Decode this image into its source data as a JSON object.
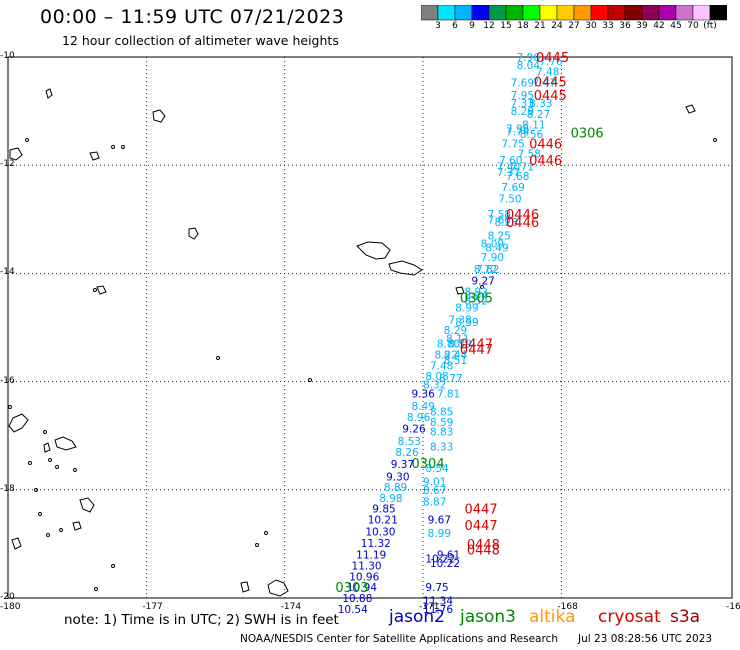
{
  "title": "00:00 – 11:59 UTC 07/21/2023",
  "subtitle": "12 hour collection of altimeter wave heights",
  "colorbar": {
    "colors": [
      "#7f7f7f",
      "#00e5ff",
      "#00b4ff",
      "#0000ff",
      "#009a4a",
      "#00b400",
      "#00ff00",
      "#ffff00",
      "#ffcc00",
      "#ff9900",
      "#ff0000",
      "#c00000",
      "#800000",
      "#8b0055",
      "#ac00ac",
      "#d070d0",
      "#ffc0ff",
      "#000000"
    ],
    "labels": [
      "3",
      "6",
      "9",
      "12",
      "15",
      "18",
      "21",
      "24",
      "27",
      "30",
      "33",
      "36",
      "39",
      "42",
      "45",
      "70",
      "(ft)"
    ]
  },
  "axes": {
    "x_ticks": [
      "-180",
      "-177",
      "-174",
      "-171",
      "-168",
      "-16"
    ],
    "y_ticks": [
      "-10",
      "-12",
      "-14",
      "-16",
      "-18",
      "-20"
    ]
  },
  "note": "note: 1) Time is in UTC; 2) SWH is in feet",
  "legend": [
    {
      "label": "jason2",
      "color": "#0000cc"
    },
    {
      "label": "jason3",
      "color": "#008800"
    },
    {
      "label": "altika",
      "color": "#ff9900"
    },
    {
      "label": "cryosat",
      "color": "#dd0000"
    },
    {
      "label": "s3a",
      "color": "#990000"
    }
  ],
  "credit": "NOAA/NESDIS Center for Satellite Applications and Research",
  "timestamp": "Jul 23 08:28:56 UTC 2023",
  "time_labels": [
    {
      "text": "0445",
      "lon": -168.55,
      "lat": -10.0,
      "color": "#dd0000"
    },
    {
      "text": "0445",
      "lon": -168.6,
      "lat": -10.45,
      "color": "#dd0000"
    },
    {
      "text": "0445",
      "lon": -168.6,
      "lat": -10.7,
      "color": "#dd0000"
    },
    {
      "text": "0306",
      "lon": -167.8,
      "lat": -11.4,
      "color": "#008800"
    },
    {
      "text": "0446",
      "lon": -168.7,
      "lat": -11.6,
      "color": "#dd0000"
    },
    {
      "text": "0446",
      "lon": -168.7,
      "lat": -11.9,
      "color": "#dd0000"
    },
    {
      "text": "0446",
      "lon": -169.2,
      "lat": -12.9,
      "color": "#dd0000"
    },
    {
      "text": "0446",
      "lon": -169.2,
      "lat": -13.05,
      "color": "#dd0000"
    },
    {
      "text": "0305",
      "lon": -170.2,
      "lat": -14.45,
      "color": "#008800"
    },
    {
      "text": "0447",
      "lon": -170.2,
      "lat": -15.3,
      "color": "#dd0000"
    },
    {
      "text": "0447",
      "lon": -170.2,
      "lat": -15.4,
      "color": "#dd0000"
    },
    {
      "text": "0304",
      "lon": -171.25,
      "lat": -17.5,
      "color": "#008800"
    },
    {
      "text": "0447",
      "lon": -170.1,
      "lat": -18.35,
      "color": "#dd0000"
    },
    {
      "text": "0447",
      "lon": -170.1,
      "lat": -18.65,
      "color": "#dd0000"
    },
    {
      "text": "0448",
      "lon": -170.05,
      "lat": -19.0,
      "color": "#dd0000"
    },
    {
      "text": "0448",
      "lon": -170.05,
      "lat": -19.1,
      "color": "#dd0000"
    },
    {
      "text": "0303",
      "lon": -172.9,
      "lat": -19.8,
      "color": "#008800"
    }
  ],
  "swh_values": [
    {
      "v": "7.96",
      "lon": -168.97,
      "lat": -10.0,
      "c": "#00b4ff"
    },
    {
      "v": "8.04",
      "lon": -168.97,
      "lat": -10.15,
      "c": "#00b4ff"
    },
    {
      "v": "7.76",
      "lon": -168.48,
      "lat": -10.07,
      "c": "#00b4ff"
    },
    {
      "v": "7.48",
      "lon": -168.55,
      "lat": -10.27,
      "c": "#00b4ff"
    },
    {
      "v": "7.47",
      "lon": -168.62,
      "lat": -10.47,
      "c": "#00b4ff"
    },
    {
      "v": "7.69",
      "lon": -169.1,
      "lat": -10.47,
      "c": "#00b4ff"
    },
    {
      "v": "7.95",
      "lon": -169.1,
      "lat": -10.7,
      "c": "#00b4ff"
    },
    {
      "v": "7.33",
      "lon": -169.1,
      "lat": -10.85,
      "c": "#00b4ff"
    },
    {
      "v": "8.33",
      "lon": -168.7,
      "lat": -10.85,
      "c": "#00b4ff"
    },
    {
      "v": "8.29",
      "lon": -169.1,
      "lat": -11.0,
      "c": "#00b4ff"
    },
    {
      "v": "8.27",
      "lon": -168.75,
      "lat": -11.05,
      "c": "#00b4ff"
    },
    {
      "v": "8.11",
      "lon": -168.85,
      "lat": -11.25,
      "c": "#00b4ff"
    },
    {
      "v": "7.96",
      "lon": -169.2,
      "lat": -11.32,
      "c": "#00b4ff"
    },
    {
      "v": "7.74",
      "lon": -169.2,
      "lat": -11.38,
      "c": "#00b4ff"
    },
    {
      "v": "8.56",
      "lon": -168.9,
      "lat": -11.42,
      "c": "#00b4ff"
    },
    {
      "v": "7.75",
      "lon": -169.3,
      "lat": -11.6,
      "c": "#00b4ff"
    },
    {
      "v": "7.58",
      "lon": -168.95,
      "lat": -11.78,
      "c": "#00b4ff"
    },
    {
      "v": "7.60",
      "lon": -169.35,
      "lat": -11.9,
      "c": "#00b4ff"
    },
    {
      "v": "7.40",
      "lon": -169.4,
      "lat": -12.02,
      "c": "#00b4ff"
    },
    {
      "v": "7.71",
      "lon": -169.1,
      "lat": -12.02,
      "c": "#00b4ff"
    },
    {
      "v": "7.37",
      "lon": -169.4,
      "lat": -12.13,
      "c": "#00b4ff"
    },
    {
      "v": "7.68",
      "lon": -169.2,
      "lat": -12.2,
      "c": "#00b4ff"
    },
    {
      "v": "7.69",
      "lon": -169.3,
      "lat": -12.4,
      "c": "#00b4ff"
    },
    {
      "v": "7.50",
      "lon": -169.37,
      "lat": -12.62,
      "c": "#00b4ff"
    },
    {
      "v": "7.58",
      "lon": -169.6,
      "lat": -12.9,
      "c": "#00b4ff"
    },
    {
      "v": "7.66",
      "lon": -169.6,
      "lat": -13.0,
      "c": "#00b4ff"
    },
    {
      "v": "8.28",
      "lon": -169.45,
      "lat": -13.05,
      "c": "#00b4ff"
    },
    {
      "v": "8.25",
      "lon": -169.6,
      "lat": -13.3,
      "c": "#00b4ff"
    },
    {
      "v": "8.09",
      "lon": -169.75,
      "lat": -13.45,
      "c": "#00b4ff"
    },
    {
      "v": "8.49",
      "lon": -169.65,
      "lat": -13.52,
      "c": "#00b4ff"
    },
    {
      "v": "7.90",
      "lon": -169.75,
      "lat": -13.7,
      "c": "#00b4ff"
    },
    {
      "v": "8.72",
      "lon": -169.9,
      "lat": -13.92,
      "c": "#00b4ff"
    },
    {
      "v": "7.82",
      "lon": -169.85,
      "lat": -13.92,
      "c": "#00b4ff"
    },
    {
      "v": "9.27",
      "lon": -169.95,
      "lat": -14.13,
      "c": "#0000cc"
    },
    {
      "v": "8.92",
      "lon": -170.1,
      "lat": -14.33,
      "c": "#00b4ff"
    },
    {
      "v": "8.04",
      "lon": -170.1,
      "lat": -14.4,
      "c": "#00b4ff"
    },
    {
      "v": "8.52",
      "lon": -170.1,
      "lat": -14.5,
      "c": "#00b4ff"
    },
    {
      "v": "8.99",
      "lon": -170.3,
      "lat": -14.63,
      "c": "#00b4ff"
    },
    {
      "v": "7.38",
      "lon": -170.45,
      "lat": -14.85,
      "c": "#00b4ff"
    },
    {
      "v": "8.59",
      "lon": -170.3,
      "lat": -14.9,
      "c": "#00b4ff"
    },
    {
      "v": "8.29",
      "lon": -170.55,
      "lat": -15.05,
      "c": "#00b4ff"
    },
    {
      "v": "8.80",
      "lon": -170.7,
      "lat": -15.3,
      "c": "#00b4ff"
    },
    {
      "v": "8.39",
      "lon": -170.45,
      "lat": -15.3,
      "c": "#00b4ff"
    },
    {
      "v": "8.11",
      "lon": -170.5,
      "lat": -15.2,
      "c": "#00b4ff"
    },
    {
      "v": "8.22",
      "lon": -170.75,
      "lat": -15.5,
      "c": "#00b4ff"
    },
    {
      "v": "8.44",
      "lon": -170.55,
      "lat": -15.5,
      "c": "#00b4ff"
    },
    {
      "v": "8.51",
      "lon": -170.55,
      "lat": -15.6,
      "c": "#00b4ff"
    },
    {
      "v": "7.48",
      "lon": -170.85,
      "lat": -15.7,
      "c": "#00b4ff"
    },
    {
      "v": "8.08",
      "lon": -170.95,
      "lat": -15.9,
      "c": "#00b4ff"
    },
    {
      "v": "8.77",
      "lon": -170.65,
      "lat": -15.93,
      "c": "#00b4ff"
    },
    {
      "v": "8.32",
      "lon": -171.0,
      "lat": -16.05,
      "c": "#00b4ff"
    },
    {
      "v": "9.36",
      "lon": -171.25,
      "lat": -16.22,
      "c": "#0000cc"
    },
    {
      "v": "7.81",
      "lon": -170.7,
      "lat": -16.22,
      "c": "#00b4ff"
    },
    {
      "v": "8.49",
      "lon": -171.25,
      "lat": -16.45,
      "c": "#00b4ff"
    },
    {
      "v": "8.85",
      "lon": -170.85,
      "lat": -16.55,
      "c": "#00b4ff"
    },
    {
      "v": "8.96",
      "lon": -171.35,
      "lat": -16.65,
      "c": "#00b4ff"
    },
    {
      "v": "8.59",
      "lon": -170.85,
      "lat": -16.75,
      "c": "#00b4ff"
    },
    {
      "v": "9.26",
      "lon": -171.45,
      "lat": -16.87,
      "c": "#0000cc"
    },
    {
      "v": "8.83",
      "lon": -170.85,
      "lat": -16.92,
      "c": "#00b4ff"
    },
    {
      "v": "8.53",
      "lon": -171.55,
      "lat": -17.1,
      "c": "#00b4ff"
    },
    {
      "v": "8.33",
      "lon": -170.85,
      "lat": -17.2,
      "c": "#00b4ff"
    },
    {
      "v": "8.26",
      "lon": -171.6,
      "lat": -17.3,
      "c": "#00b4ff"
    },
    {
      "v": "9.37",
      "lon": -171.7,
      "lat": -17.52,
      "c": "#0000cc"
    },
    {
      "v": "8.54",
      "lon": -170.95,
      "lat": -17.6,
      "c": "#00b4ff"
    },
    {
      "v": "9.30",
      "lon": -171.8,
      "lat": -17.75,
      "c": "#0000cc"
    },
    {
      "v": "9.01",
      "lon": -171.0,
      "lat": -17.85,
      "c": "#00b4ff"
    },
    {
      "v": "8.89",
      "lon": -171.85,
      "lat": -17.95,
      "c": "#00b4ff"
    },
    {
      "v": "8.67",
      "lon": -171.0,
      "lat": -18.0,
      "c": "#00b4ff"
    },
    {
      "v": "8.98",
      "lon": -171.95,
      "lat": -18.15,
      "c": "#00b4ff"
    },
    {
      "v": "8.87",
      "lon": -171.0,
      "lat": -18.22,
      "c": "#00b4ff"
    },
    {
      "v": "9.85",
      "lon": -172.1,
      "lat": -18.35,
      "c": "#0000cc"
    },
    {
      "v": "10.21",
      "lon": -172.2,
      "lat": -18.55,
      "c": "#0000cc"
    },
    {
      "v": "9.67",
      "lon": -170.9,
      "lat": -18.55,
      "c": "#0000cc"
    },
    {
      "v": "10.30",
      "lon": -172.25,
      "lat": -18.77,
      "c": "#0000cc"
    },
    {
      "v": "8.99",
      "lon": -170.9,
      "lat": -18.8,
      "c": "#00b4ff"
    },
    {
      "v": "11.32",
      "lon": -172.35,
      "lat": -18.98,
      "c": "#0000cc"
    },
    {
      "v": "11.19",
      "lon": -172.45,
      "lat": -19.2,
      "c": "#0000cc"
    },
    {
      "v": "9.61",
      "lon": -170.7,
      "lat": -19.2,
      "c": "#0000cc"
    },
    {
      "v": "10.22",
      "lon": -170.95,
      "lat": -19.27,
      "c": "#0000cc"
    },
    {
      "v": "10.22",
      "lon": -170.85,
      "lat": -19.35,
      "c": "#0000cc"
    },
    {
      "v": "11.30",
      "lon": -172.55,
      "lat": -19.4,
      "c": "#0000cc"
    },
    {
      "v": "10.96",
      "lon": -172.6,
      "lat": -19.6,
      "c": "#0000cc"
    },
    {
      "v": "10.94",
      "lon": -172.65,
      "lat": -19.8,
      "c": "#0000cc"
    },
    {
      "v": "9.75",
      "lon": -170.95,
      "lat": -19.8,
      "c": "#0000cc"
    },
    {
      "v": "10.88",
      "lon": -172.75,
      "lat": -20.0,
      "c": "#0000cc"
    },
    {
      "v": "11.34",
      "lon": -171.0,
      "lat": -20.05,
      "c": "#0000cc"
    },
    {
      "v": "10.54",
      "lon": -172.85,
      "lat": -20.2,
      "c": "#0000cc"
    },
    {
      "v": "11.76",
      "lon": -171.0,
      "lat": -20.2,
      "c": "#0000cc"
    }
  ]
}
